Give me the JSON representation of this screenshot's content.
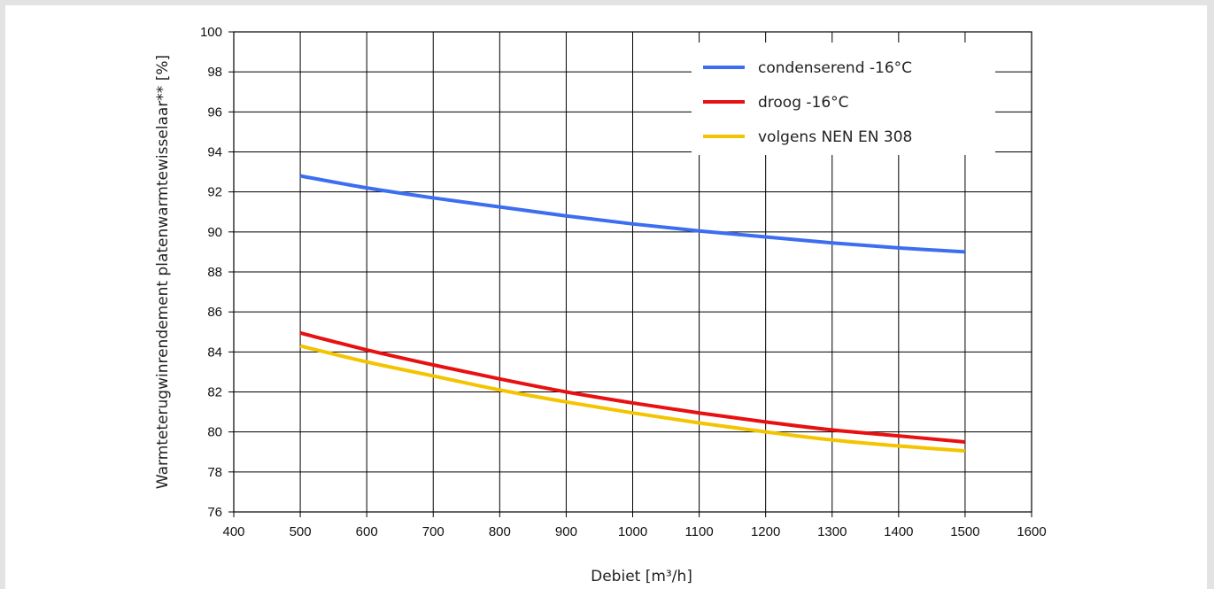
{
  "chart_data": {
    "type": "line",
    "xlabel": "Debiet [m³/h]",
    "ylabel": "Warmteterugwinrendement platenwarmtewisselaar** [%]",
    "xlim": [
      400,
      1600
    ],
    "ylim": [
      76,
      100
    ],
    "x_ticks": [
      "400",
      "500",
      "600",
      "700",
      "800",
      "900",
      "1000",
      "1100",
      "1200",
      "1300",
      "1400",
      "1500",
      "1600"
    ],
    "y_ticks": [
      "76",
      "78",
      "80",
      "82",
      "84",
      "86",
      "88",
      "90",
      "92",
      "94",
      "96",
      "98",
      "100"
    ],
    "grid": true,
    "legend_position": "top-right",
    "series": [
      {
        "name": "condenserend -16°C",
        "color": "#3d6ef0",
        "x": [
          500,
          600,
          700,
          800,
          900,
          1000,
          1100,
          1200,
          1300,
          1400,
          1500
        ],
        "y": [
          92.8,
          92.2,
          91.7,
          91.25,
          90.8,
          90.4,
          90.05,
          89.75,
          89.45,
          89.2,
          89.0
        ]
      },
      {
        "name": "droog -16°C",
        "color": "#e81010",
        "x": [
          500,
          600,
          700,
          800,
          900,
          1000,
          1100,
          1200,
          1300,
          1400,
          1500
        ],
        "y": [
          84.95,
          84.1,
          83.35,
          82.65,
          82.0,
          81.45,
          80.95,
          80.5,
          80.1,
          79.8,
          79.5
        ]
      },
      {
        "name": "volgens NEN EN 308",
        "color": "#f4c400",
        "x": [
          500,
          600,
          700,
          800,
          900,
          1000,
          1100,
          1200,
          1300,
          1400,
          1500
        ],
        "y": [
          84.3,
          83.5,
          82.8,
          82.1,
          81.5,
          80.95,
          80.45,
          80.0,
          79.6,
          79.3,
          79.05
        ]
      }
    ]
  }
}
